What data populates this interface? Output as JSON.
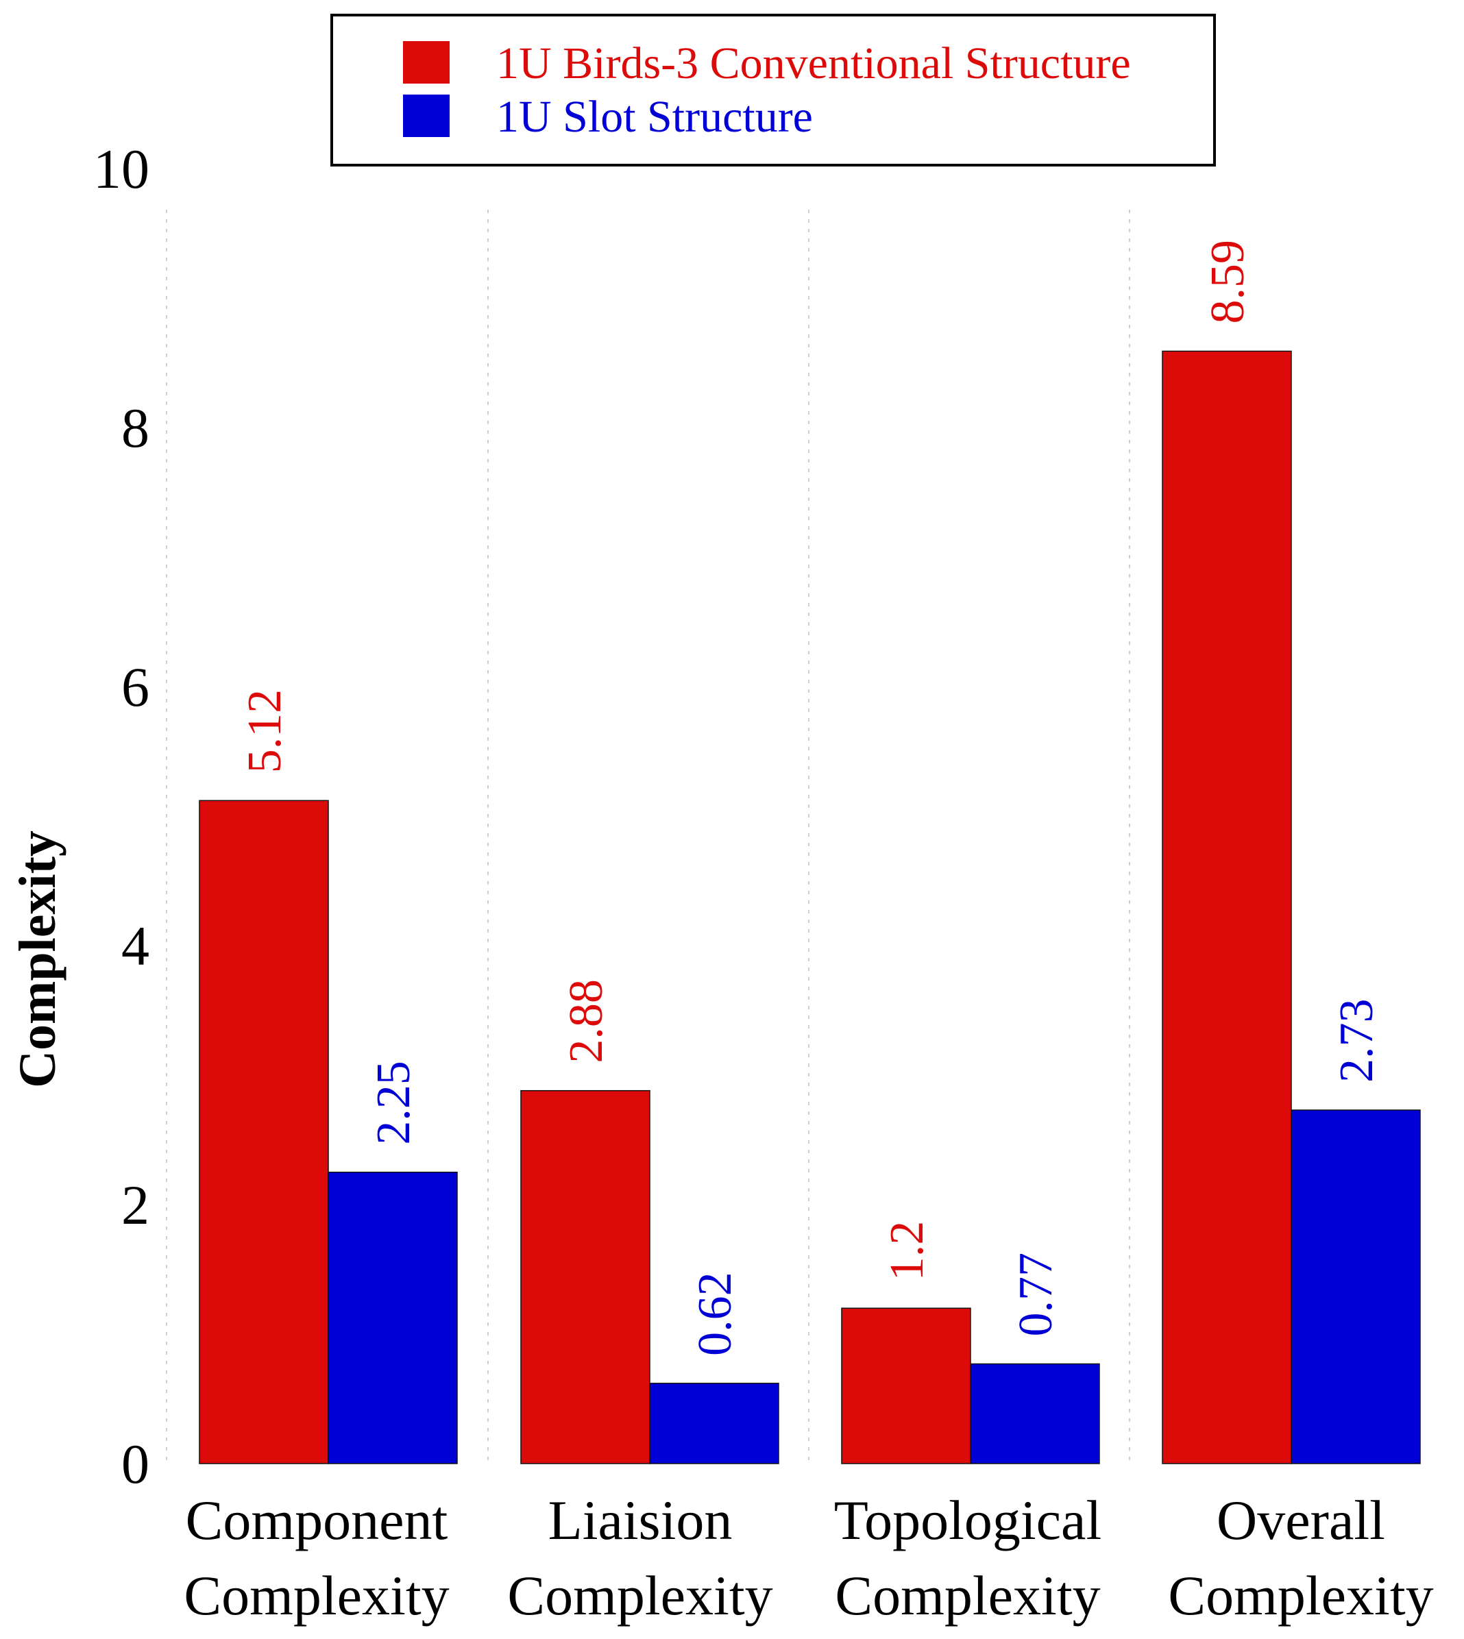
{
  "chart_data": {
    "type": "bar",
    "title": "",
    "xlabel": "",
    "ylabel": "Complexity",
    "ylim": [
      0,
      10
    ],
    "yticks": [
      "0",
      "2",
      "4",
      "6",
      "8",
      "10"
    ],
    "grid": "vertical dotted",
    "legend_position": "top-center",
    "categories": [
      [
        "Component",
        "Complexity"
      ],
      [
        "Liaision",
        "Complexity"
      ],
      [
        "Topological",
        "Complexity"
      ],
      [
        "Overall",
        "Complexity"
      ]
    ],
    "series": [
      {
        "name": "1U Birds-3 Conventional Structure",
        "color": "#dd0a0a",
        "values": [
          5.12,
          2.88,
          1.2,
          8.59
        ],
        "labels": [
          "5.12",
          "2.88",
          "1.2",
          "8.59"
        ]
      },
      {
        "name": "1U Slot Structure",
        "color": "#0000d6",
        "values": [
          2.25,
          0.62,
          0.77,
          2.73
        ],
        "labels": [
          "2.25",
          "0.62",
          "0.77",
          "2.73"
        ]
      }
    ]
  }
}
